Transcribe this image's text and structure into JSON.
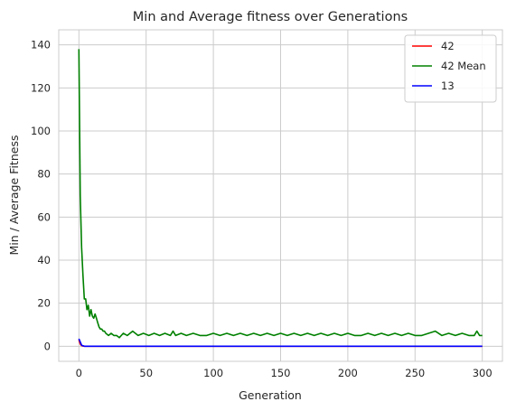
{
  "chart_data": {
    "type": "line",
    "title": "Min and Average fitness over Generations",
    "xlabel": "Generation",
    "ylabel": "Min / Average Fitness",
    "xlim": [
      -15,
      315
    ],
    "ylim": [
      -7,
      147
    ],
    "xticks": [
      0,
      50,
      100,
      150,
      200,
      250,
      300
    ],
    "yticks": [
      0,
      20,
      40,
      60,
      80,
      100,
      120,
      140
    ],
    "grid": true,
    "legend_position": "top-right",
    "series": [
      {
        "name": "42",
        "color": "#ff0000",
        "x": [
          0,
          1,
          2,
          3,
          4,
          5,
          300
        ],
        "values": [
          3.0,
          1.0,
          0.3,
          0.1,
          0.0,
          0.0,
          0.0
        ]
      },
      {
        "name": "42 Mean",
        "color": "#008000",
        "x": [
          0,
          1,
          2,
          3,
          4,
          5,
          6,
          7,
          8,
          9,
          10,
          11,
          12,
          13,
          14,
          15,
          16,
          17,
          18,
          19,
          20,
          22,
          24,
          26,
          28,
          30,
          33,
          36,
          40,
          44,
          48,
          52,
          56,
          60,
          64,
          68,
          70,
          72,
          76,
          80,
          85,
          90,
          95,
          100,
          105,
          110,
          115,
          120,
          125,
          130,
          135,
          140,
          145,
          150,
          155,
          160,
          165,
          170,
          175,
          180,
          185,
          190,
          195,
          200,
          205,
          210,
          215,
          220,
          225,
          230,
          235,
          240,
          245,
          250,
          255,
          260,
          265,
          270,
          275,
          280,
          285,
          290,
          294,
          296,
          298,
          300
        ],
        "values": [
          138,
          70,
          46,
          33,
          22,
          22,
          17,
          19,
          14,
          17,
          14,
          13,
          15,
          13,
          11,
          9,
          8,
          8,
          7,
          7,
          6,
          5,
          6,
          5,
          5,
          4,
          6,
          5,
          7,
          5,
          6,
          5,
          6,
          5,
          6,
          5,
          7,
          5,
          6,
          5,
          6,
          5,
          5,
          6,
          5,
          6,
          5,
          6,
          5,
          6,
          5,
          6,
          5,
          6,
          5,
          6,
          5,
          6,
          5,
          6,
          5,
          6,
          5,
          6,
          5,
          5,
          6,
          5,
          6,
          5,
          6,
          5,
          6,
          5,
          5,
          6,
          7,
          5,
          6,
          5,
          6,
          5,
          5,
          7,
          5,
          5
        ]
      },
      {
        "name": "13",
        "color": "#0000ff",
        "x": [
          0,
          1,
          2,
          3,
          4,
          5,
          300
        ],
        "values": [
          3.5,
          2.0,
          0.5,
          0.2,
          0.0,
          0.0,
          0.0
        ]
      }
    ]
  }
}
